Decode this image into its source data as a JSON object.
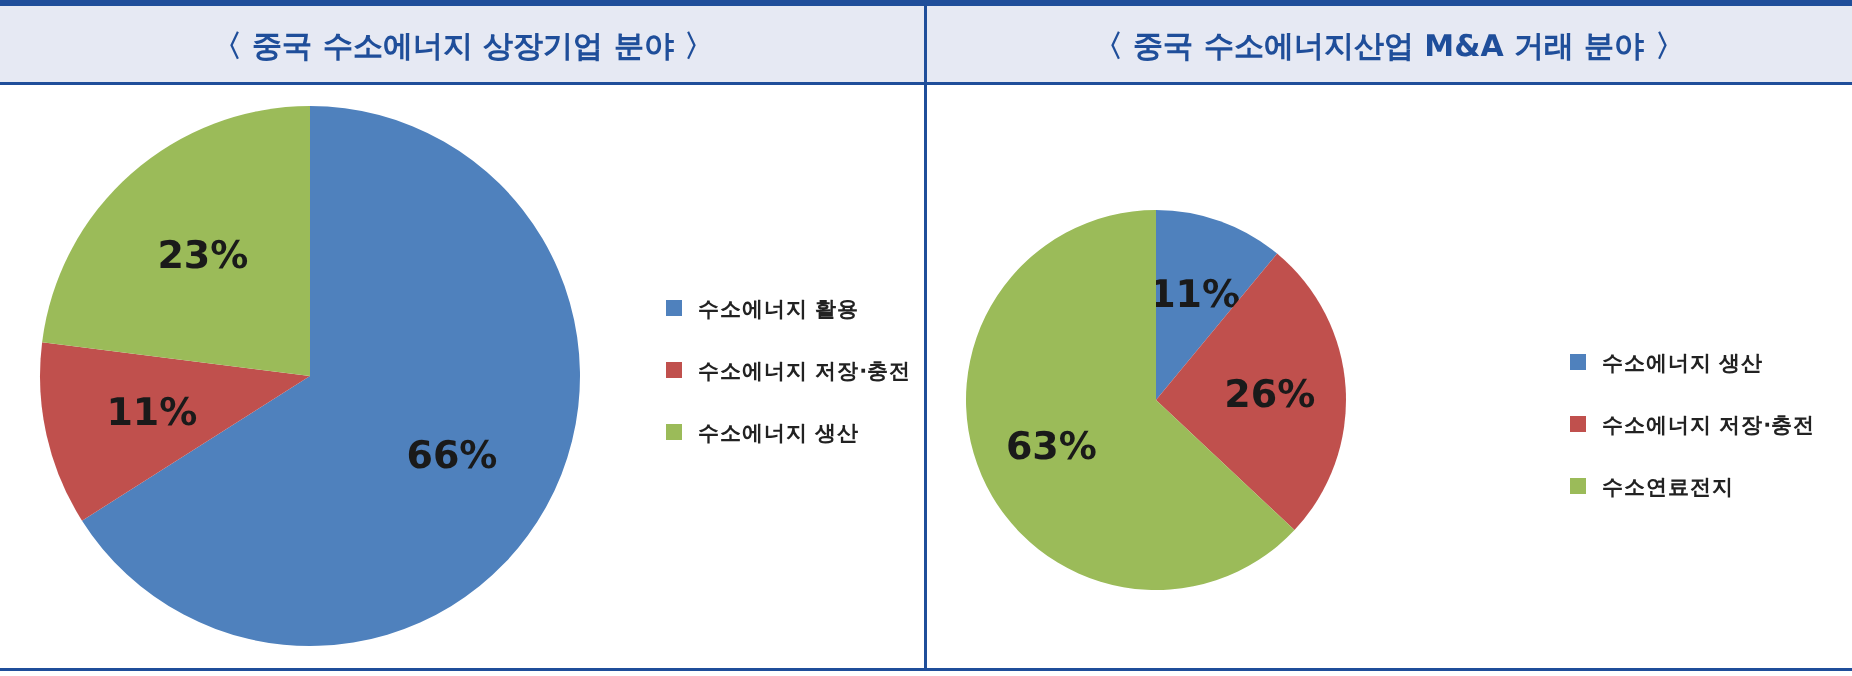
{
  "chart_data": [
    {
      "type": "pie",
      "title": "〈 중국 수소에너지 상장기업 분야 〉",
      "categories": [
        "수소에너지 활용",
        "수소에너지 저장·충전",
        "수소에너지 생산"
      ],
      "values": [
        66,
        11,
        23
      ],
      "colors": [
        "#4f81bd",
        "#c0504d",
        "#9bbb59"
      ],
      "value_labels": [
        "66%",
        "11%",
        "23%"
      ],
      "legend": "right"
    },
    {
      "type": "pie",
      "title": "〈 중국 수소에너지산업 M&A 거래 분야 〉",
      "categories": [
        "수소에너지 생산",
        "수소에너지 저장·충전",
        "수소연료전지"
      ],
      "values": [
        11,
        26,
        63
      ],
      "colors": [
        "#4f81bd",
        "#c0504d",
        "#9bbb59"
      ],
      "value_labels": [
        "11%",
        "26%",
        "63%"
      ],
      "legend": "right"
    }
  ]
}
